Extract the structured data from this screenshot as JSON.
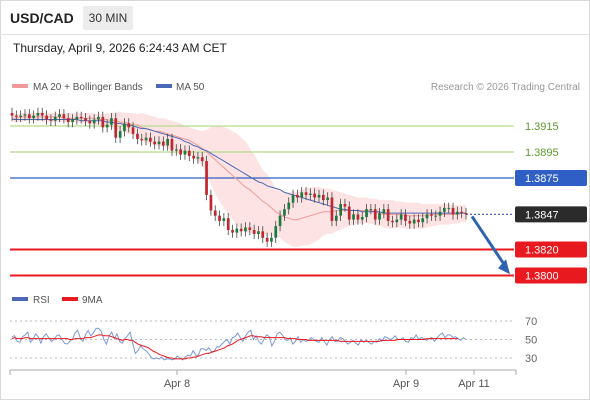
{
  "header": {
    "pair": "USD/CAD",
    "timeframe": "30 MIN",
    "datetime": "Thursday, April 9, 2026 6:24:43 AM CET"
  },
  "legend": {
    "ma20_bb": "MA 20 + Bollinger Bands",
    "ma50": "MA 50",
    "credit": "Research © 2026 Trading Central",
    "rsi": "RSI",
    "ma9": "9MA"
  },
  "colors": {
    "bullish": "#1d7a3e",
    "bearish": "#c0262e",
    "bollinger_fill": "#fde3e3",
    "ma20": "#f19a9a",
    "ma50": "#4a68b5",
    "resistance": "#b6d98a",
    "pivot": "#2f5fc4",
    "support": "#e8191f",
    "last_price_tag": "#2b2b2b",
    "rsi_line": "#7b99d6",
    "ma9_line": "#e8191f"
  },
  "chart_data": [
    {
      "type": "candlestick",
      "title": "USD/CAD",
      "timeframe": "30 MIN",
      "x_ticks": [
        "Apr 8",
        "Apr 9",
        "Apr 11"
      ],
      "ylim": [
        1.3795,
        1.3935
      ],
      "levels": [
        {
          "value": 1.3915,
          "label": "1.3915",
          "kind": "resistance"
        },
        {
          "value": 1.3895,
          "label": "1.3895",
          "kind": "resistance"
        },
        {
          "value": 1.3875,
          "label": "1.3875",
          "kind": "pivot"
        },
        {
          "value": 1.3847,
          "label": "1.3847",
          "kind": "last"
        },
        {
          "value": 1.382,
          "label": "1.3820",
          "kind": "support"
        },
        {
          "value": 1.38,
          "label": "1.3800",
          "kind": "support"
        }
      ],
      "closes": [
        1.3923,
        1.3922,
        1.3923,
        1.3924,
        1.3921,
        1.3923,
        1.3925,
        1.3923,
        1.392,
        1.3919,
        1.3922,
        1.3924,
        1.3921,
        1.3918,
        1.392,
        1.3922,
        1.3921,
        1.3919,
        1.3917,
        1.392,
        1.3922,
        1.3914,
        1.3916,
        1.3921,
        1.3906,
        1.3911,
        1.3917,
        1.3914,
        1.3909,
        1.3905,
        1.3904,
        1.3906,
        1.3903,
        1.3901,
        1.3903,
        1.39,
        1.3905,
        1.3896,
        1.3897,
        1.3893,
        1.3896,
        1.3892,
        1.389,
        1.3891,
        1.3888,
        1.3862,
        1.385,
        1.3846,
        1.3842,
        1.3844,
        1.3835,
        1.3833,
        1.3836,
        1.3834,
        1.3837,
        1.3835,
        1.3832,
        1.3834,
        1.3829,
        1.3826,
        1.3829,
        1.3838,
        1.3846,
        1.3851,
        1.3856,
        1.3862,
        1.386,
        1.3864,
        1.3862,
        1.3863,
        1.386,
        1.3862,
        1.3858,
        1.386,
        1.3842,
        1.3846,
        1.3855,
        1.3853,
        1.3843,
        1.3847,
        1.3843,
        1.3845,
        1.3851,
        1.3851,
        1.3843,
        1.3848,
        1.3851,
        1.3842,
        1.3841,
        1.3843,
        1.3847,
        1.3842,
        1.384,
        1.3843,
        1.3841,
        1.3844,
        1.3847,
        1.3846,
        1.3846,
        1.3849,
        1.3852,
        1.3852,
        1.3847,
        1.3849,
        1.3848,
        1.3847
      ],
      "ma20": [
        1.3921,
        1.3921,
        1.3922,
        1.3922,
        1.3922,
        1.3922,
        1.3922,
        1.3922,
        1.3922,
        1.3922,
        1.3922,
        1.3922,
        1.3921,
        1.3921,
        1.3921,
        1.3921,
        1.3921,
        1.3921,
        1.3921,
        1.3921,
        1.392,
        1.392,
        1.392,
        1.3919,
        1.3919,
        1.3918,
        1.3918,
        1.3917,
        1.3916,
        1.3916,
        1.3914,
        1.3913,
        1.3912,
        1.3911,
        1.3911,
        1.391,
        1.3909,
        1.3908,
        1.3907,
        1.3906,
        1.3905,
        1.3904,
        1.3902,
        1.39,
        1.3898,
        1.3895,
        1.3892,
        1.3889,
        1.3886,
        1.3883,
        1.388,
        1.3877,
        1.3874,
        1.3871,
        1.3868,
        1.3866,
        1.3863,
        1.386,
        1.3857,
        1.3855,
        1.3852,
        1.3849,
        1.3847,
        1.3845,
        1.3844,
        1.3843,
        1.3843,
        1.3844,
        1.3845,
        1.3846,
        1.3847,
        1.3848,
        1.3849,
        1.3849,
        1.3849,
        1.385,
        1.385,
        1.385,
        1.385,
        1.385,
        1.385,
        1.385,
        1.385,
        1.385,
        1.3849,
        1.3848,
        1.3847,
        1.3847,
        1.3847,
        1.3847,
        1.3847,
        1.3846,
        1.3846,
        1.3846,
        1.3846,
        1.3846,
        1.3846,
        1.3847,
        1.3847,
        1.3847,
        1.3847,
        1.3847,
        1.3847,
        1.3847,
        1.3848,
        1.3848
      ],
      "bb_upper": [
        1.3924,
        1.3924,
        1.3925,
        1.3925,
        1.3925,
        1.3925,
        1.3925,
        1.3926,
        1.3925,
        1.3925,
        1.3925,
        1.3925,
        1.3925,
        1.3925,
        1.3925,
        1.3925,
        1.3925,
        1.3925,
        1.3925,
        1.3925,
        1.3924,
        1.3924,
        1.3925,
        1.3925,
        1.3926,
        1.3926,
        1.3925,
        1.3925,
        1.3925,
        1.3924,
        1.3925,
        1.3924,
        1.3923,
        1.3922,
        1.3921,
        1.3921,
        1.392,
        1.3919,
        1.3918,
        1.3917,
        1.3915,
        1.3914,
        1.3913,
        1.3912,
        1.3911,
        1.3912,
        1.3914,
        1.3915,
        1.3915,
        1.3914,
        1.3913,
        1.3911,
        1.3909,
        1.3906,
        1.3903,
        1.3898,
        1.3893,
        1.3887,
        1.3881,
        1.3878,
        1.3873,
        1.3867,
        1.3865,
        1.3864,
        1.3864,
        1.3865,
        1.3864,
        1.3866,
        1.3867,
        1.3868,
        1.3868,
        1.3868,
        1.3867,
        1.3867,
        1.3866,
        1.3865,
        1.3864,
        1.3863,
        1.3862,
        1.3861,
        1.386,
        1.386,
        1.386,
        1.3859,
        1.3859,
        1.3858,
        1.3858,
        1.3858,
        1.3858,
        1.3857,
        1.3857,
        1.3856,
        1.3856,
        1.3856,
        1.3856,
        1.3855,
        1.3855,
        1.3855,
        1.3855,
        1.3855,
        1.3855,
        1.3855,
        1.3854,
        1.3854,
        1.3854,
        1.3854
      ],
      "bb_lower": [
        1.3918,
        1.3918,
        1.3918,
        1.3919,
        1.3919,
        1.3919,
        1.3919,
        1.3918,
        1.3918,
        1.3918,
        1.3918,
        1.3918,
        1.3918,
        1.3918,
        1.3918,
        1.3918,
        1.3917,
        1.3917,
        1.3917,
        1.3916,
        1.3916,
        1.3915,
        1.3914,
        1.3914,
        1.3912,
        1.3911,
        1.391,
        1.3909,
        1.3908,
        1.3907,
        1.3904,
        1.3902,
        1.3901,
        1.39,
        1.39,
        1.3899,
        1.3898,
        1.3897,
        1.3896,
        1.3895,
        1.3894,
        1.3893,
        1.3891,
        1.3888,
        1.3885,
        1.3878,
        1.387,
        1.3863,
        1.3857,
        1.3852,
        1.3847,
        1.3843,
        1.3839,
        1.3836,
        1.3833,
        1.3833,
        1.3832,
        1.3832,
        1.3832,
        1.3831,
        1.383,
        1.383,
        1.3829,
        1.3826,
        1.3824,
        1.3822,
        1.3822,
        1.3823,
        1.3823,
        1.3824,
        1.3826,
        1.3828,
        1.3831,
        1.3832,
        1.3832,
        1.3834,
        1.3835,
        1.3837,
        1.3838,
        1.3839,
        1.384,
        1.384,
        1.384,
        1.384,
        1.3839,
        1.3838,
        1.3837,
        1.3836,
        1.3836,
        1.3837,
        1.3837,
        1.3836,
        1.3836,
        1.3836,
        1.3836,
        1.3836,
        1.3837,
        1.3838,
        1.3838,
        1.3839,
        1.3839,
        1.3839,
        1.384,
        1.384,
        1.3841,
        1.3841
      ],
      "ma50": [
        1.392,
        1.392,
        1.392,
        1.392,
        1.392,
        1.392,
        1.392,
        1.392,
        1.392,
        1.392,
        1.392,
        1.392,
        1.392,
        1.392,
        1.392,
        1.392,
        1.3919,
        1.3919,
        1.3919,
        1.3919,
        1.3919,
        1.3919,
        1.3918,
        1.3918,
        1.3917,
        1.3917,
        1.3916,
        1.3916,
        1.3915,
        1.3914,
        1.3913,
        1.3913,
        1.3912,
        1.3911,
        1.391,
        1.3909,
        1.3908,
        1.3907,
        1.3906,
        1.3905,
        1.3903,
        1.3902,
        1.39,
        1.3899,
        1.3897,
        1.3896,
        1.3894,
        1.3892,
        1.389,
        1.3888,
        1.3886,
        1.3884,
        1.3882,
        1.388,
        1.3878,
        1.3876,
        1.3874,
        1.3872,
        1.3871,
        1.3869,
        1.3868,
        1.3867,
        1.3866,
        1.3864,
        1.3863,
        1.3862,
        1.3861,
        1.386,
        1.3859,
        1.3858,
        1.3857,
        1.3856,
        1.3855,
        1.3854,
        1.3853,
        1.3852,
        1.3851,
        1.3851,
        1.385,
        1.385,
        1.385,
        1.3849,
        1.3849,
        1.3849,
        1.3849,
        1.3849,
        1.3848,
        1.3848,
        1.3848,
        1.3848,
        1.3848,
        1.3848,
        1.3848,
        1.3848,
        1.3848,
        1.3848,
        1.3848,
        1.3848,
        1.3848,
        1.3848,
        1.3848,
        1.3848,
        1.3848,
        1.3848,
        1.3848,
        1.3848
      ]
    },
    {
      "type": "line",
      "title": "RSI",
      "x_ticks": [
        "Apr 8",
        "Apr 9",
        "Apr 11"
      ],
      "ylim": [
        25,
        75
      ],
      "yticks": [
        30,
        50,
        70
      ],
      "series": [
        {
          "name": "RSI",
          "values": [
            53,
            54,
            48,
            47,
            53,
            55,
            58,
            47,
            50,
            56,
            53,
            46,
            53,
            56,
            52,
            48,
            50,
            54,
            55,
            50,
            46,
            45,
            48,
            50,
            57,
            60,
            52,
            48,
            55,
            60,
            54,
            57,
            62,
            62,
            59,
            50,
            45,
            54,
            58,
            51,
            56,
            48,
            46,
            51,
            54,
            58,
            46,
            35,
            38,
            43,
            40,
            38,
            35,
            31,
            29,
            30,
            29,
            31,
            28,
            29,
            29,
            28,
            29,
            32,
            30,
            28,
            31,
            33,
            32,
            38,
            33,
            33,
            40,
            40,
            38,
            41,
            37,
            37,
            42,
            42,
            45,
            48,
            50,
            45,
            52,
            53,
            57,
            52,
            48,
            54,
            58,
            60,
            50,
            54,
            48,
            45,
            50,
            55,
            53,
            43,
            48,
            56,
            58,
            55,
            50,
            49,
            52,
            45,
            48,
            53,
            47,
            50,
            48,
            49,
            52,
            50,
            48,
            47,
            52,
            48,
            44,
            50,
            53,
            48,
            48,
            52,
            51,
            48,
            45,
            47,
            49,
            46,
            44,
            50,
            47,
            49,
            47,
            45,
            48,
            47,
            51,
            48,
            53,
            52,
            50,
            51,
            54,
            50,
            50,
            52,
            48,
            47,
            52,
            51,
            55,
            50,
            52,
            51,
            49,
            51,
            52,
            48,
            52,
            55,
            57,
            52,
            55,
            55,
            52,
            53,
            51,
            49,
            52,
            50
          ]
        },
        {
          "name": "9MA",
          "values": [
            51,
            52,
            51,
            51,
            51,
            52,
            52,
            51,
            51,
            51,
            51,
            51,
            51,
            51,
            51,
            51,
            51,
            51,
            51,
            51,
            51,
            51,
            50,
            50,
            51,
            51,
            51,
            51,
            52,
            52,
            52,
            53,
            54,
            55,
            55,
            54,
            54,
            54,
            53,
            52,
            51,
            50,
            49,
            50,
            50,
            49,
            49,
            47,
            45,
            44,
            43,
            42,
            41,
            39,
            37,
            36,
            34,
            33,
            32,
            31,
            30,
            30,
            29,
            29,
            29,
            29,
            29,
            30,
            30,
            31,
            31,
            32,
            33,
            34,
            35,
            35,
            36,
            37,
            38,
            39,
            40,
            41,
            43,
            44,
            45,
            47,
            49,
            50,
            51,
            52,
            53,
            54,
            54,
            53,
            53,
            53,
            52,
            52,
            52,
            52,
            52,
            52,
            52,
            52,
            52,
            51,
            51,
            51,
            51,
            50,
            50,
            50,
            50,
            49,
            49,
            49,
            49,
            49,
            49,
            49,
            49,
            49,
            49,
            49,
            49,
            48,
            48,
            48,
            48,
            48,
            48,
            48,
            48,
            48,
            48,
            48,
            48,
            48,
            48,
            48,
            48,
            49,
            49,
            49,
            49,
            49,
            49,
            50,
            50,
            50,
            50,
            50,
            50,
            50,
            50,
            50,
            50,
            50,
            51,
            51,
            51,
            51,
            51,
            51,
            51,
            51,
            51,
            51,
            51,
            51,
            51
          ]
        }
      ]
    }
  ]
}
